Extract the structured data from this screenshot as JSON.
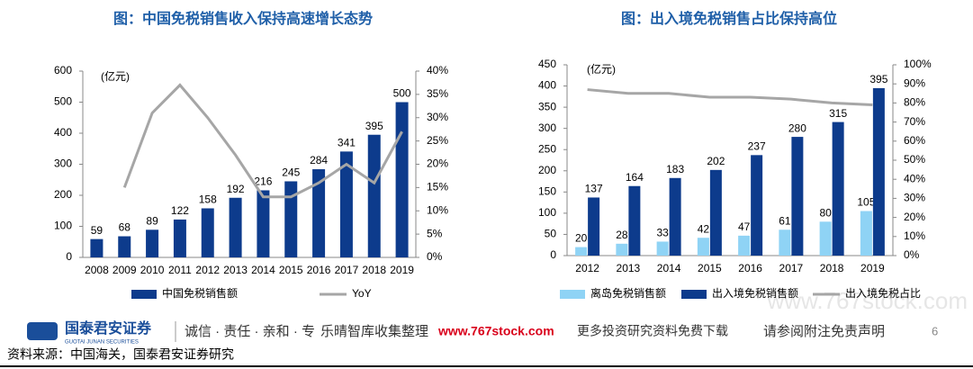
{
  "chart_data": [
    {
      "type": "bar",
      "title": "图：中国免税销售收入保持高速增长态势",
      "unit": "(亿元)",
      "categories": [
        "2008",
        "2009",
        "2010",
        "2011",
        "2012",
        "2013",
        "2014",
        "2015",
        "2016",
        "2017",
        "2018",
        "2019"
      ],
      "series": [
        {
          "name": "中国免税销售额",
          "color": "#0d3b8c",
          "values": [
            59,
            68,
            89,
            122,
            158,
            192,
            216,
            245,
            284,
            341,
            395,
            500
          ]
        },
        {
          "name": "YoY",
          "type": "line",
          "axis": "y2",
          "color": "#a6a6a6",
          "values": [
            null,
            15,
            31,
            37,
            30,
            22,
            13,
            13,
            16,
            20,
            16,
            27
          ]
        }
      ],
      "ylim": [
        0,
        600
      ],
      "yticks": [
        0,
        100,
        200,
        300,
        400,
        500,
        600
      ],
      "y2lim": [
        0,
        40
      ],
      "y2ticks": [
        {
          "value": 0,
          "label": "0%"
        },
        {
          "value": 5,
          "label": "5%"
        },
        {
          "value": 10,
          "label": "10%"
        },
        {
          "value": 15,
          "label": "15%"
        },
        {
          "value": 20,
          "label": "20%"
        },
        {
          "value": 25,
          "label": "25%"
        },
        {
          "value": 30,
          "label": "30%"
        },
        {
          "value": 35,
          "label": "35%"
        },
        {
          "value": 40,
          "label": "40%"
        }
      ],
      "grid": false
    },
    {
      "type": "bar",
      "title": "图：出入境免税销售占比保持高位",
      "unit": "(亿元)",
      "categories": [
        "2012",
        "2013",
        "2014",
        "2015",
        "2016",
        "2017",
        "2018",
        "2019"
      ],
      "series": [
        {
          "name": "离岛免税销售额",
          "color": "#8fd3f5",
          "values": [
            20,
            28,
            33,
            42,
            47,
            61,
            80,
            105
          ]
        },
        {
          "name": "出入境免税销售额",
          "color": "#0d3b8c",
          "values": [
            137,
            164,
            183,
            202,
            237,
            280,
            315,
            395
          ]
        },
        {
          "name": "出入境免税占比",
          "type": "line",
          "axis": "y2",
          "color": "#a6a6a6",
          "values": [
            87,
            85,
            85,
            83,
            83,
            82,
            80,
            79
          ]
        }
      ],
      "ylim": [
        0,
        450
      ],
      "yticks": [
        0,
        50,
        100,
        150,
        200,
        250,
        300,
        350,
        400,
        450
      ],
      "y2lim": [
        0,
        100
      ],
      "y2ticks": [
        {
          "value": 0,
          "label": "0%"
        },
        {
          "value": 10,
          "label": "10%"
        },
        {
          "value": 20,
          "label": "20%"
        },
        {
          "value": 30,
          "label": "30%"
        },
        {
          "value": 40,
          "label": "40%"
        },
        {
          "value": 50,
          "label": "50%"
        },
        {
          "value": 60,
          "label": "60%"
        },
        {
          "value": 70,
          "label": "70%"
        },
        {
          "value": 80,
          "label": "80%"
        },
        {
          "value": 90,
          "label": "90%"
        },
        {
          "value": 100,
          "label": "100%"
        }
      ],
      "grid": false
    }
  ],
  "footer": {
    "company": "国泰君安证券",
    "company_en": "GUOTAI JUNAN SECURITIES",
    "motto": "诚信 · 责任 · 亲和 · 专",
    "watermark": "乐晴智库收集整理",
    "site": "www.767stock.com",
    "site_note": "更多投资研究资料免费下载",
    "disclaimer": "请参阅附注免责声明",
    "page": "6",
    "source": "资料来源：中国海关，国泰君安证券研究",
    "corner_mark": "www.767stock.com"
  }
}
